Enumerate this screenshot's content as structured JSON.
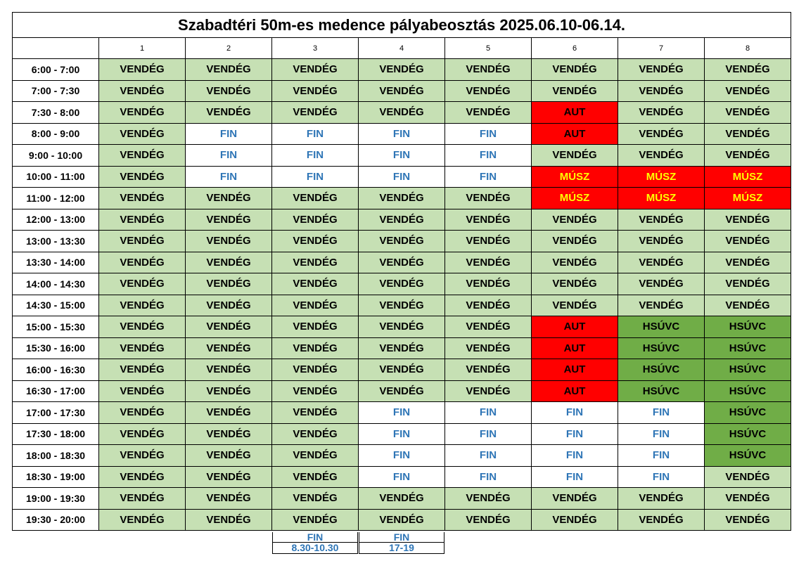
{
  "title": "Szabadtéri 50m-es medence pályabeosztás 2025.06.10-06.14.",
  "lanes": [
    "1",
    "2",
    "3",
    "4",
    "5",
    "6",
    "7",
    "8"
  ],
  "rows": [
    {
      "time": "6:00 - 7:00",
      "cells": [
        "VENDÉG",
        "VENDÉG",
        "VENDÉG",
        "VENDÉG",
        "VENDÉG",
        "VENDÉG",
        "VENDÉG",
        "VENDÉG"
      ]
    },
    {
      "time": "7:00 - 7:30",
      "cells": [
        "VENDÉG",
        "VENDÉG",
        "VENDÉG",
        "VENDÉG",
        "VENDÉG",
        "VENDÉG",
        "VENDÉG",
        "VENDÉG"
      ]
    },
    {
      "time": "7:30 - 8:00",
      "cells": [
        "VENDÉG",
        "VENDÉG",
        "VENDÉG",
        "VENDÉG",
        "VENDÉG",
        "AUT",
        "VENDÉG",
        "VENDÉG"
      ]
    },
    {
      "time": "8:00 - 9:00",
      "cells": [
        "VENDÉG",
        "FIN",
        "FIN",
        "FIN",
        "FIN",
        "AUT",
        "VENDÉG",
        "VENDÉG"
      ]
    },
    {
      "time": "9:00 - 10:00",
      "cells": [
        "VENDÉG",
        "FIN",
        "FIN",
        "FIN",
        "FIN",
        "VENDÉG",
        "VENDÉG",
        "VENDÉG"
      ]
    },
    {
      "time": "10:00 - 11:00",
      "cells": [
        "VENDÉG",
        "FIN",
        "FIN",
        "FIN",
        "FIN",
        "MÚSZ",
        "MÚSZ",
        "MÚSZ"
      ]
    },
    {
      "time": "11:00 - 12:00",
      "cells": [
        "VENDÉG",
        "VENDÉG",
        "VENDÉG",
        "VENDÉG",
        "VENDÉG",
        "MÚSZ",
        "MÚSZ",
        "MÚSZ"
      ]
    },
    {
      "time": "12:00 - 13:00",
      "cells": [
        "VENDÉG",
        "VENDÉG",
        "VENDÉG",
        "VENDÉG",
        "VENDÉG",
        "VENDÉG",
        "VENDÉG",
        "VENDÉG"
      ]
    },
    {
      "time": "13:00 - 13:30",
      "cells": [
        "VENDÉG",
        "VENDÉG",
        "VENDÉG",
        "VENDÉG",
        "VENDÉG",
        "VENDÉG",
        "VENDÉG",
        "VENDÉG"
      ]
    },
    {
      "time": "13:30 - 14:00",
      "cells": [
        "VENDÉG",
        "VENDÉG",
        "VENDÉG",
        "VENDÉG",
        "VENDÉG",
        "VENDÉG",
        "VENDÉG",
        "VENDÉG"
      ]
    },
    {
      "time": "14:00 - 14:30",
      "cells": [
        "VENDÉG",
        "VENDÉG",
        "VENDÉG",
        "VENDÉG",
        "VENDÉG",
        "VENDÉG",
        "VENDÉG",
        "VENDÉG"
      ]
    },
    {
      "time": "14:30 - 15:00",
      "cells": [
        "VENDÉG",
        "VENDÉG",
        "VENDÉG",
        "VENDÉG",
        "VENDÉG",
        "VENDÉG",
        "VENDÉG",
        "VENDÉG"
      ]
    },
    {
      "time": "15:00 - 15:30",
      "cells": [
        "VENDÉG",
        "VENDÉG",
        "VENDÉG",
        "VENDÉG",
        "VENDÉG",
        "AUT",
        "HSÚVC",
        "HSÚVC"
      ]
    },
    {
      "time": "15:30 - 16:00",
      "cells": [
        "VENDÉG",
        "VENDÉG",
        "VENDÉG",
        "VENDÉG",
        "VENDÉG",
        "AUT",
        "HSÚVC",
        "HSÚVC"
      ]
    },
    {
      "time": "16:00 - 16:30",
      "cells": [
        "VENDÉG",
        "VENDÉG",
        "VENDÉG",
        "VENDÉG",
        "VENDÉG",
        "AUT",
        "HSÚVC",
        "HSÚVC"
      ]
    },
    {
      "time": "16:30 - 17:00",
      "cells": [
        "VENDÉG",
        "VENDÉG",
        "VENDÉG",
        "VENDÉG",
        "VENDÉG",
        "AUT",
        "HSÚVC",
        "HSÚVC"
      ]
    },
    {
      "time": "17:00 - 17:30",
      "cells": [
        "VENDÉG",
        "VENDÉG",
        "VENDÉG",
        "FIN",
        "FIN",
        "FIN",
        "FIN",
        "HSÚVC"
      ]
    },
    {
      "time": "17:30 - 18:00",
      "cells": [
        "VENDÉG",
        "VENDÉG",
        "VENDÉG",
        "FIN",
        "FIN",
        "FIN",
        "FIN",
        "HSÚVC"
      ]
    },
    {
      "time": "18:00 - 18:30",
      "cells": [
        "VENDÉG",
        "VENDÉG",
        "VENDÉG",
        "FIN",
        "FIN",
        "FIN",
        "FIN",
        "HSÚVC"
      ]
    },
    {
      "time": "18:30 - 19:00",
      "cells": [
        "VENDÉG",
        "VENDÉG",
        "VENDÉG",
        "FIN",
        "FIN",
        "FIN",
        "FIN",
        "VENDÉG"
      ]
    },
    {
      "time": "19:00 - 19:30",
      "cells": [
        "VENDÉG",
        "VENDÉG",
        "VENDÉG",
        "VENDÉG",
        "VENDÉG",
        "VENDÉG",
        "VENDÉG",
        "VENDÉG"
      ]
    },
    {
      "time": "19:30 - 20:00",
      "cells": [
        "VENDÉG",
        "VENDÉG",
        "VENDÉG",
        "VENDÉG",
        "VENDÉG",
        "VENDÉG",
        "VENDÉG",
        "VENDÉG"
      ]
    }
  ],
  "footnotes": [
    {
      "label": "FIN",
      "time": "8.30-10.30"
    },
    {
      "label": "FIN",
      "time": "17-19"
    }
  ],
  "colors": {
    "VENDÉG": {
      "bg": "#c6e0b4",
      "fg": "#000000"
    },
    "FIN": {
      "bg": "#ffffff",
      "fg": "#2e75b6"
    },
    "AUT": {
      "bg": "#ff0000",
      "fg": "#000000"
    },
    "MÚSZ": {
      "bg": "#ff0000",
      "fg": "#ffff00"
    },
    "HSÚVC": {
      "bg": "#70ad47",
      "fg": "#000000"
    }
  }
}
